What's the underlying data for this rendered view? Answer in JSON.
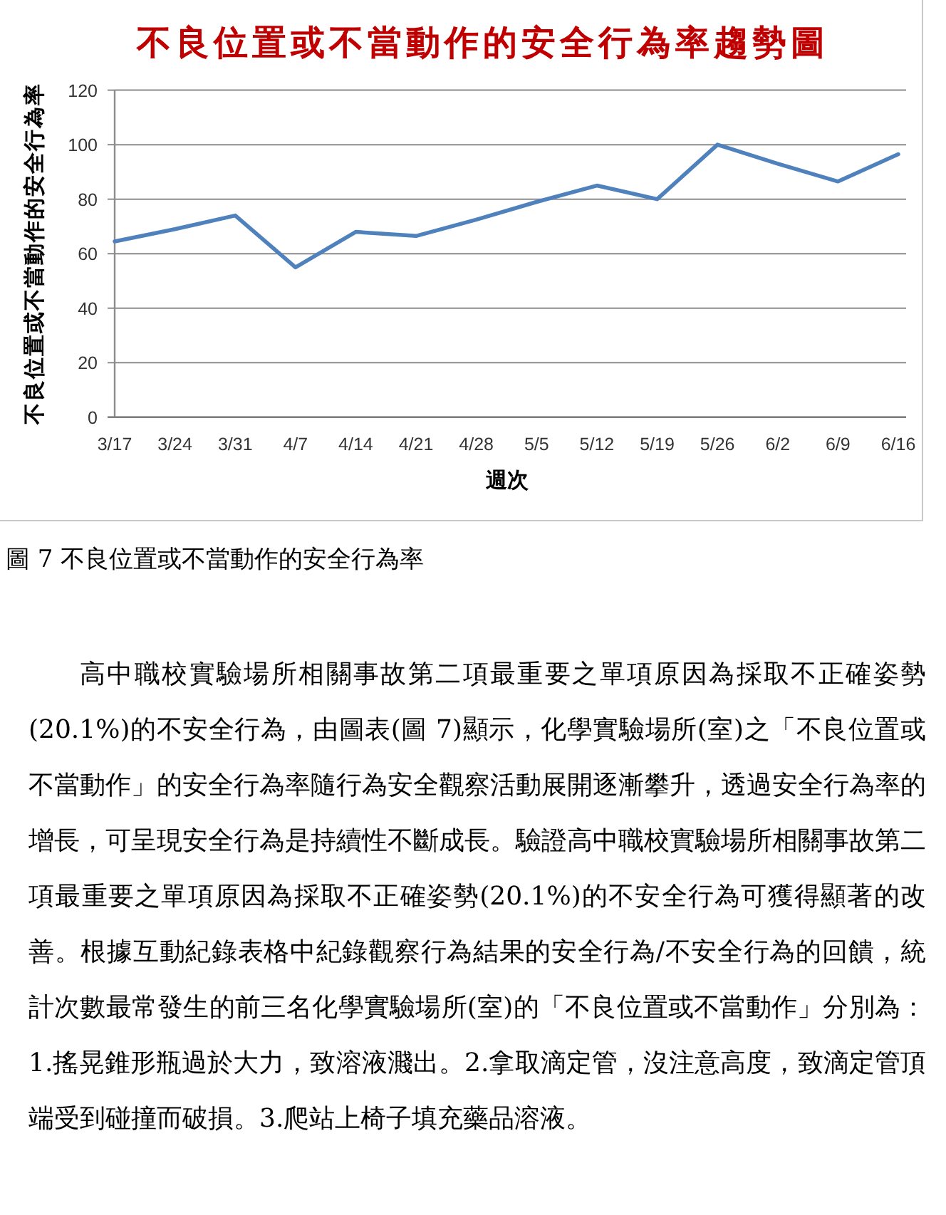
{
  "chart_data": {
    "type": "line",
    "title": "不良位置或不當動作的安全行為率趨勢圖",
    "xlabel": "週次",
    "ylabel": "不良位置或不當動作的安全行為率",
    "categories": [
      "3/17",
      "3/24",
      "3/31",
      "4/7",
      "4/14",
      "4/21",
      "4/28",
      "5/5",
      "5/12",
      "5/19",
      "5/26",
      "6/2",
      "6/9",
      "6/16"
    ],
    "series": [
      {
        "color": "#4f81bd",
        "values": [
          64.5,
          69,
          74,
          55,
          68,
          66.5,
          72.5,
          79,
          85,
          80,
          100,
          93,
          86.5,
          96.5
        ]
      }
    ],
    "ylim": [
      0,
      120
    ],
    "yticks": [
      0,
      20,
      40,
      60,
      80,
      100,
      120
    ],
    "grid": "y",
    "line_style": "solid",
    "annotations": [
      "圖 7 不良位置或不當動作的安全行為率",
      "高中職校實驗場所相關事故第二項最重要之單項原因為採取不正確姿勢(20.1%)的不安全行為，由圖表(圖 7)顯示，化學實驗場所(室)之「不良位置或不當動作」的安全行為率隨行為安全觀察活動展開逐漸攀升，透過安全行為率的增長，可呈現安全行為是持續性不斷成長。驗證高中職校實驗場所相關事故第二項最重要之單項原因為採取不正確姿勢(20.1%)的不安全行為可獲得顯著的改善。根據互動紀錄表格中紀錄觀察行為結果的安全行為/不安全行為的回饋，統計次數最常發生的前三名化學實驗場所(室)的「不良位置或不當動作」分別為：1.搖晃錐形瓶過於大力，致溶液濺出。2.拿取滴定管，沒注意高度，致滴定管頂端受到碰撞而破損。3.爬站上椅子填充藥品溶液。"
    ]
  }
}
